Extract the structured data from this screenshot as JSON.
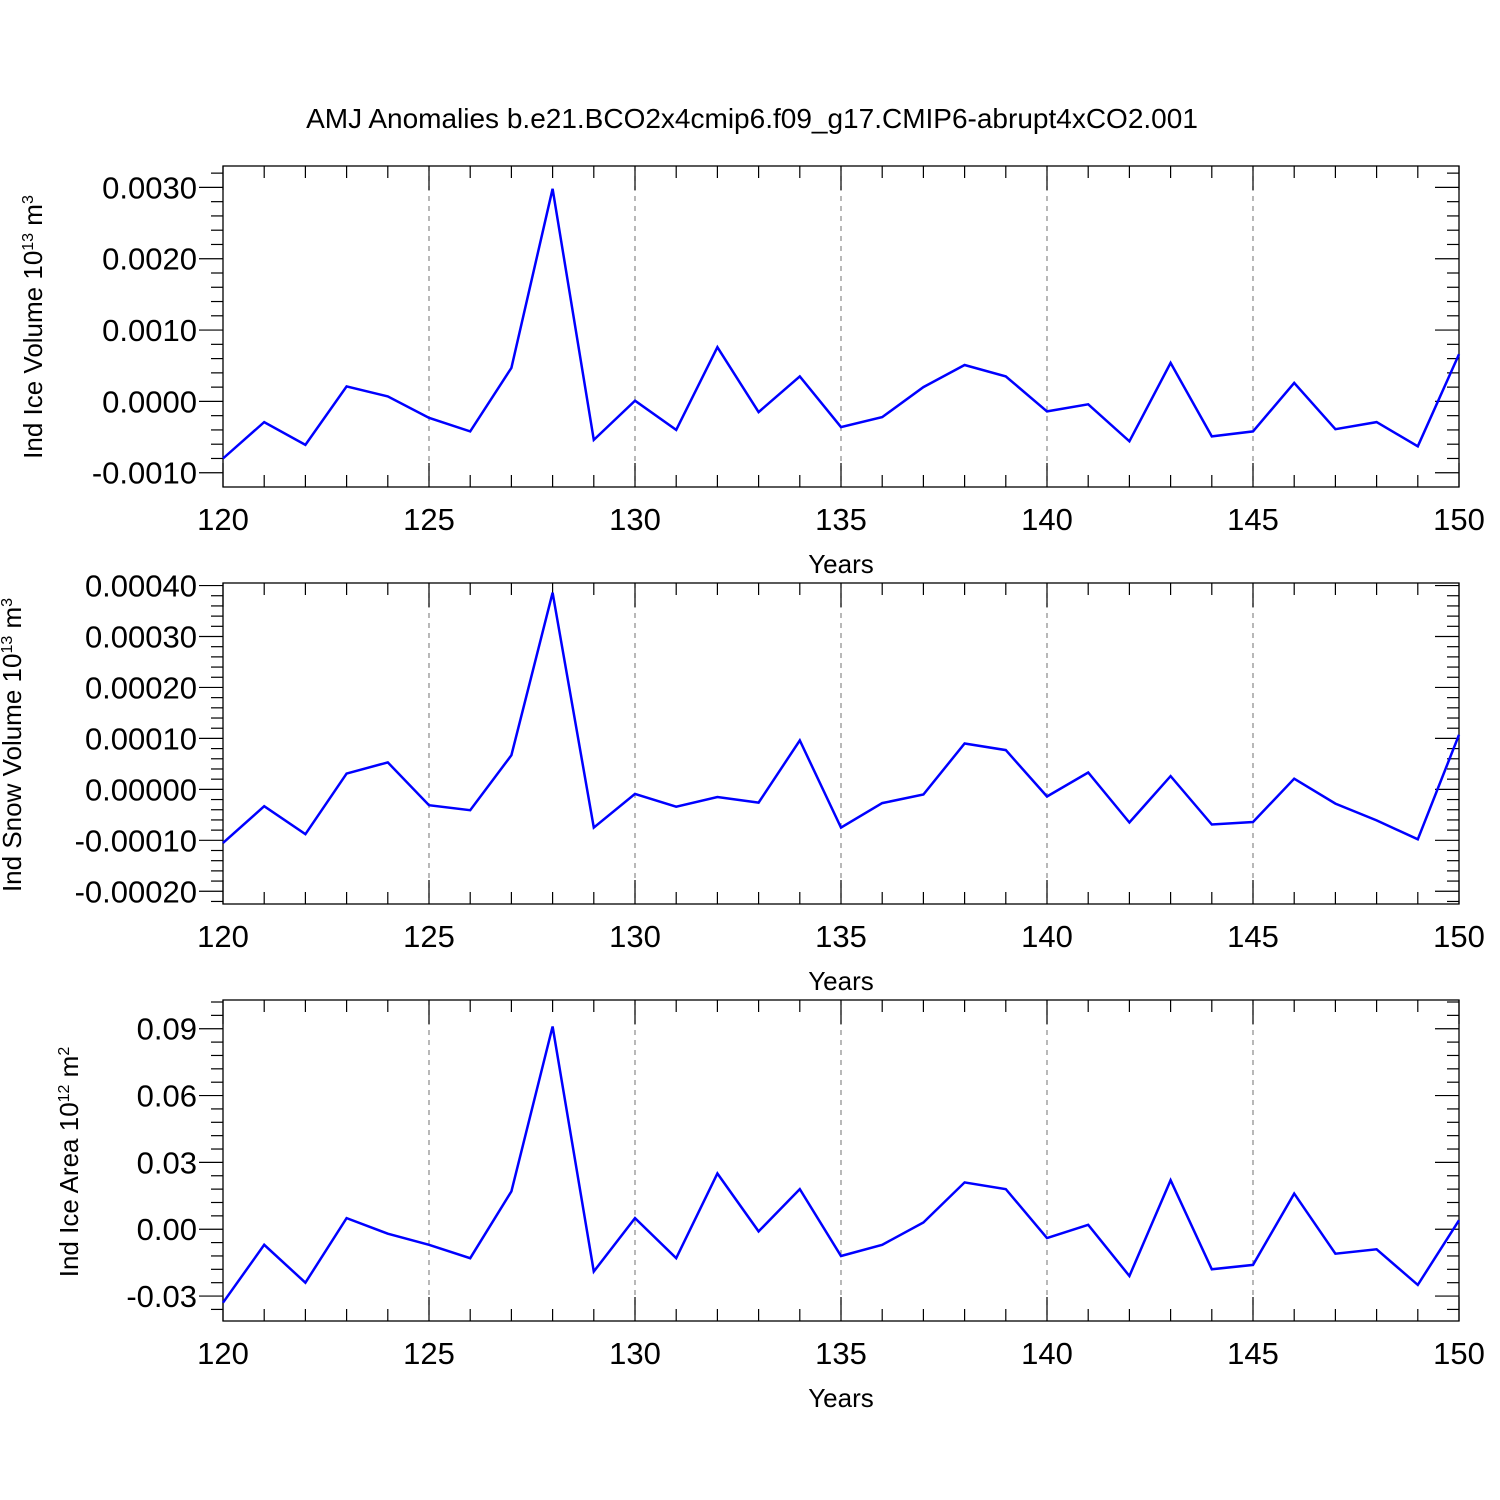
{
  "title": "AMJ Anomalies b.e21.BCO2x4cmip6.f09_g17.CMIP6-abrupt4xCO2.001",
  "colors": {
    "line": "#0000ff",
    "grid": "#8a8a8a",
    "axes": "#000000"
  },
  "chart_data": [
    {
      "type": "line",
      "ylabel": {
        "text": "Ind Ice Volume 10",
        "sup": "13",
        "unit": " m",
        "unit_sup": "3"
      },
      "xlabel": "Years",
      "xlim": [
        120,
        150
      ],
      "ylim": [
        -0.001,
        0.003
      ],
      "xticks": [
        120,
        125,
        130,
        135,
        140,
        145,
        150
      ],
      "xtick_labels": [
        "120",
        "125",
        "130",
        "135",
        "140",
        "145",
        "150"
      ],
      "yticks": [
        -0.001,
        0.0,
        0.001,
        0.002,
        0.003
      ],
      "ytick_labels": [
        "-0.0010",
        "0.0000",
        "0.0010",
        "0.0020",
        "0.0030"
      ],
      "grid": "vertical dashed at major x ticks",
      "x": [
        120,
        121,
        122,
        123,
        124,
        125,
        126,
        127,
        128,
        129,
        130,
        131,
        132,
        133,
        134,
        135,
        136,
        137,
        138,
        139,
        140,
        141,
        142,
        143,
        144,
        145,
        146,
        147,
        148,
        149,
        150
      ],
      "values": [
        -0.0008,
        -0.00029,
        -0.00061,
        0.00021,
        7e-05,
        -0.00023,
        -0.00042,
        0.00047,
        0.00298,
        -0.00054,
        1e-05,
        -0.0004,
        0.00076,
        -0.00015,
        0.00035,
        -0.00036,
        -0.00022,
        0.0002,
        0.00051,
        0.00035,
        -0.00014,
        -4e-05,
        -0.00056,
        0.00054,
        -0.00049,
        -0.00042,
        0.00026,
        -0.00039,
        -0.00029,
        -0.00063,
        0.00066
      ]
    },
    {
      "type": "line",
      "ylabel": {
        "text": "Ind Snow Volume 10",
        "sup": "13",
        "unit": " m",
        "unit_sup": "3"
      },
      "xlabel": "Years",
      "xlim": [
        120,
        150
      ],
      "ylim": [
        -0.0002,
        0.0004
      ],
      "xticks": [
        120,
        125,
        130,
        135,
        140,
        145,
        150
      ],
      "xtick_labels": [
        "120",
        "125",
        "130",
        "135",
        "140",
        "145",
        "150"
      ],
      "yticks": [
        -0.0002,
        -0.0001,
        0.0,
        0.0001,
        0.0002,
        0.0003,
        0.0004
      ],
      "ytick_labels": [
        "-0.00020",
        "-0.00010",
        "0.00000",
        "0.00010",
        "0.00020",
        "0.00030",
        "0.00040"
      ],
      "grid": "vertical dashed at major x ticks",
      "x": [
        120,
        121,
        122,
        123,
        124,
        125,
        126,
        127,
        128,
        129,
        130,
        131,
        132,
        133,
        134,
        135,
        136,
        137,
        138,
        139,
        140,
        141,
        142,
        143,
        144,
        145,
        146,
        147,
        148,
        149,
        150
      ],
      "values": [
        -0.000105,
        -3.3e-05,
        -8.8e-05,
        3.1e-05,
        5.3e-05,
        -3.1e-05,
        -4.1e-05,
        6.7e-05,
        0.000386,
        -7.5e-05,
        -9e-06,
        -3.4e-05,
        -1.5e-05,
        -2.6e-05,
        9.6e-05,
        -7.5e-05,
        -2.7e-05,
        -1e-05,
        9e-05,
        7.7e-05,
        -1.4e-05,
        3.3e-05,
        -6.5e-05,
        2.6e-05,
        -6.9e-05,
        -6.4e-05,
        2.1e-05,
        -2.8e-05,
        -6.1e-05,
        -9.8e-05,
        0.000107
      ]
    },
    {
      "type": "line",
      "ylabel": {
        "text": "Ind Ice Area 10",
        "sup": "12",
        "unit": " m",
        "unit_sup": "2"
      },
      "xlabel": "Years",
      "xlim": [
        120,
        150
      ],
      "ylim": [
        -0.04,
        0.1
      ],
      "xticks": [
        120,
        125,
        130,
        135,
        140,
        145,
        150
      ],
      "xtick_labels": [
        "120",
        "125",
        "130",
        "135",
        "140",
        "145",
        "150"
      ],
      "yticks": [
        -0.03,
        0.0,
        0.03,
        0.06,
        0.09
      ],
      "ytick_labels": [
        "-0.03",
        "0.00",
        "0.03",
        "0.06",
        "0.09"
      ],
      "grid": "vertical dashed at major x ticks",
      "x": [
        120,
        121,
        122,
        123,
        124,
        125,
        126,
        127,
        128,
        129,
        130,
        131,
        132,
        133,
        134,
        135,
        136,
        137,
        138,
        139,
        140,
        141,
        142,
        143,
        144,
        145,
        146,
        147,
        148,
        149,
        150
      ],
      "values": [
        -0.033,
        -0.007,
        -0.024,
        0.005,
        -0.002,
        -0.007,
        -0.013,
        0.017,
        0.091,
        -0.019,
        0.005,
        -0.013,
        0.025,
        -0.001,
        0.018,
        -0.012,
        -0.007,
        0.003,
        0.021,
        0.018,
        -0.004,
        0.002,
        -0.021,
        0.022,
        -0.018,
        -0.016,
        0.016,
        -0.011,
        -0.009,
        -0.025,
        0.004
      ]
    }
  ]
}
